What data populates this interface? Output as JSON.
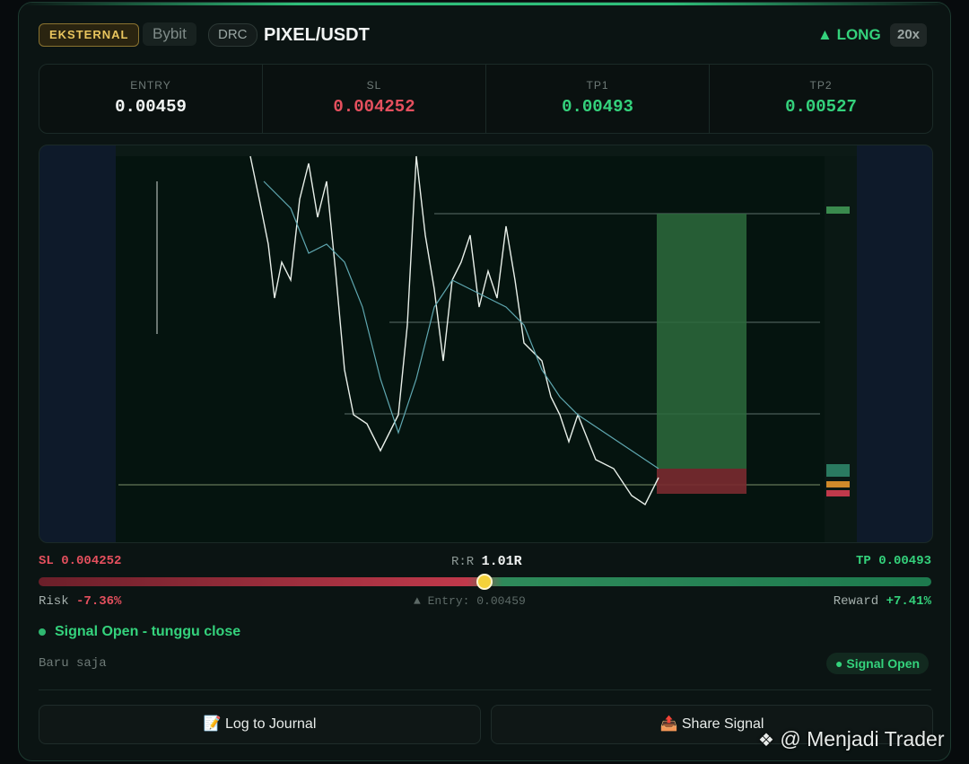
{
  "header": {
    "badge": "EKSTERNAL",
    "exchange": "Bybit",
    "tag": "DRC",
    "pair": "PIXEL/USDT",
    "direction": "LONG",
    "leverage": "20x"
  },
  "levels": [
    {
      "label": "ENTRY",
      "value": "0.00459"
    },
    {
      "label": "SL",
      "value": "0.004252"
    },
    {
      "label": "TP1",
      "value": "0.00493"
    },
    {
      "label": "TP2",
      "value": "0.00527"
    }
  ],
  "risk_reward": {
    "sl_label": "SL",
    "sl_value": "0.004252",
    "rr_label": "R:R",
    "rr_value": "1.01R",
    "tp_label": "TP",
    "tp_value": "0.00493",
    "risk_label": "Risk",
    "risk_value": "-7.36%",
    "entry_label": "Entry: 0.00459",
    "reward_label": "Reward",
    "reward_value": "+7.41%"
  },
  "status": {
    "message": "Signal Open - tunggu close",
    "time": "Baru saja",
    "pill": "Signal Open"
  },
  "buttons": [
    "📝 Log to Journal",
    "📤 Share Signal"
  ],
  "watermark": "@ Menjadi Trader"
}
